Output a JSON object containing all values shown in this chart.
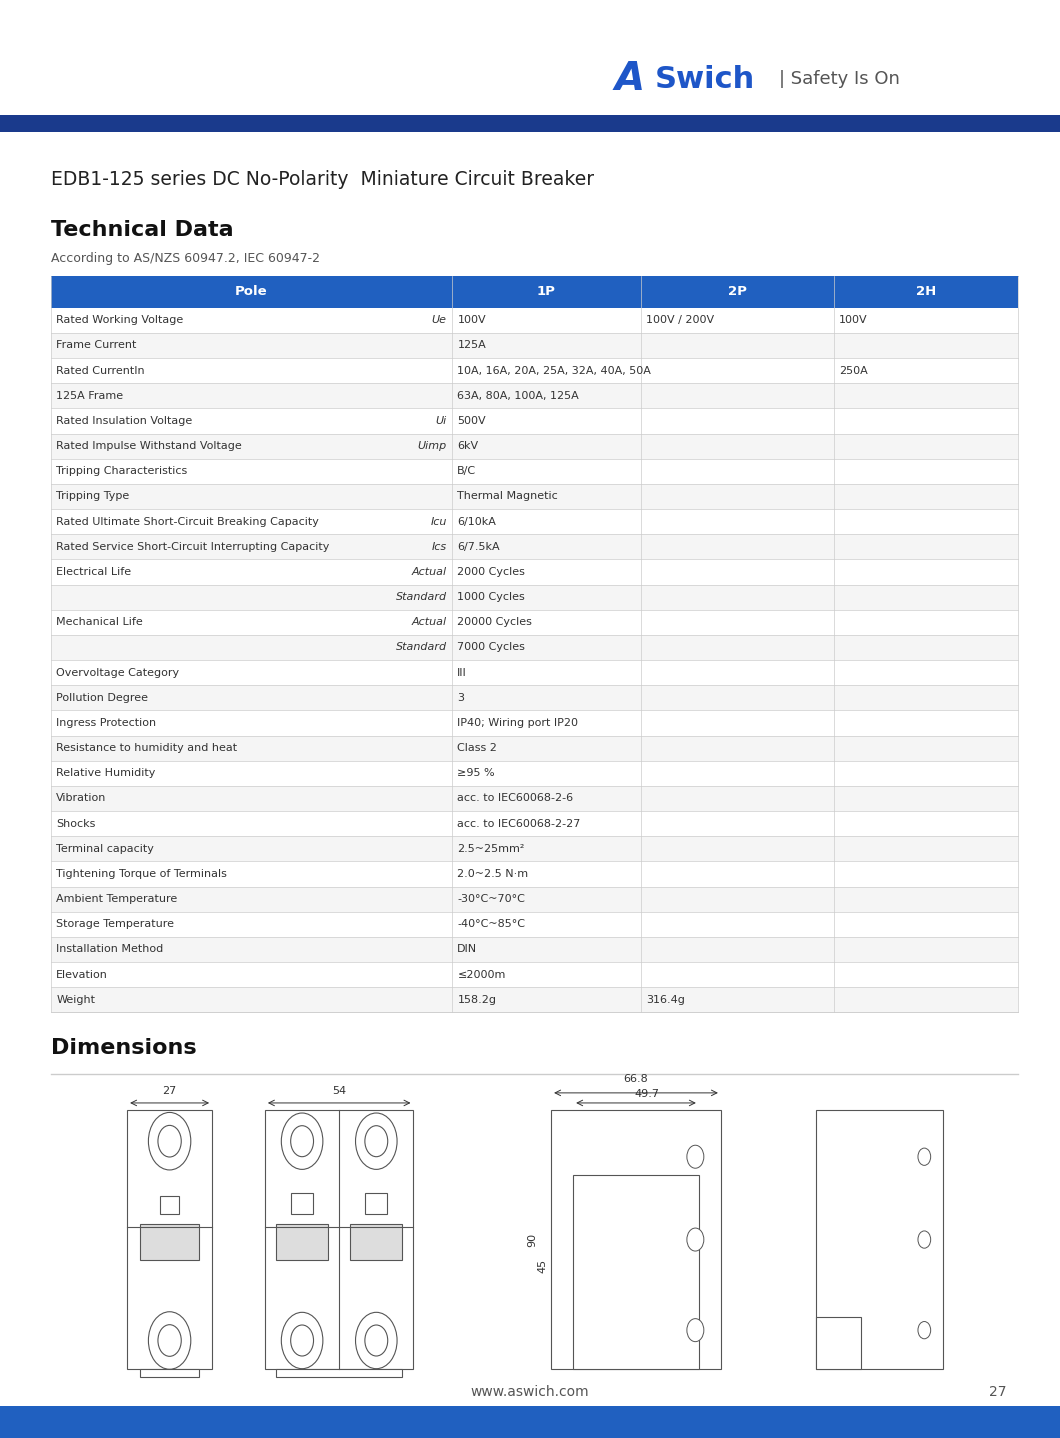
{
  "page_bg": "#ffffff",
  "header_bar_color": "#1a3a8c",
  "header_bar_height": 0.028,
  "logo_text_A": "A",
  "logo_text_Swich": "Swich",
  "logo_tagline": "| Safety Is On",
  "logo_A_color": "#1e56c8",
  "logo_Swich_color": "#1e56c8",
  "logo_tagline_color": "#555555",
  "product_title": "EDB1-125 series DC No-Polarity  Miniature Circuit Breaker",
  "section_title_technical": "Technical Data",
  "section_subtitle": "According to AS/NZS 60947.2, IEC 60947-2",
  "table_header_bg": "#2060c0",
  "table_header_text": "#ffffff",
  "table_row_bg_odd": "#ffffff",
  "table_row_bg_even": "#f5f5f5",
  "table_border_color": "#cccccc",
  "table_text_color": "#333333",
  "col_headers": [
    "Pole",
    "1P",
    "2P",
    "2H"
  ],
  "rows": [
    [
      "Rated Working Voltage",
      "Ue",
      "100V",
      "100V / 200V",
      "100V"
    ],
    [
      "Frame Current",
      "",
      "125A",
      "",
      ""
    ],
    [
      "Rated CurrentIn",
      "",
      "10A, 16A, 20A, 25A, 32A, 40A, 50A",
      "",
      "250A"
    ],
    [
      "125A Frame",
      "",
      "63A, 80A, 100A, 125A",
      "",
      ""
    ],
    [
      "Rated Insulation Voltage",
      "Ui",
      "500V",
      "",
      ""
    ],
    [
      "Rated Impulse Withstand Voltage",
      "Uimp",
      "6kV",
      "",
      ""
    ],
    [
      "Tripping Characteristics",
      "",
      "B/C",
      "",
      ""
    ],
    [
      "Tripping Type",
      "",
      "Thermal Magnetic",
      "",
      ""
    ],
    [
      "Rated Ultimate Short-Circuit Breaking Capacity",
      "Icu",
      "6/10kA",
      "",
      ""
    ],
    [
      "Rated Service Short-Circuit Interrupting Capacity",
      "Ics",
      "6/7.5kA",
      "",
      ""
    ],
    [
      "Electrical Life",
      "Actual",
      "2000 Cycles",
      "",
      ""
    ],
    [
      "",
      "Standard",
      "1000 Cycles",
      "",
      ""
    ],
    [
      "Mechanical Life",
      "Actual",
      "20000 Cycles",
      "",
      ""
    ],
    [
      "",
      "Standard",
      "7000 Cycles",
      "",
      ""
    ],
    [
      "Overvoltage Category",
      "",
      "III",
      "",
      ""
    ],
    [
      "Pollution Degree",
      "",
      "3",
      "",
      ""
    ],
    [
      "Ingress Protection",
      "",
      "IP40; Wiring port IP20",
      "",
      ""
    ],
    [
      "Resistance to humidity and heat",
      "",
      "Class 2",
      "",
      ""
    ],
    [
      "Relative Humidity",
      "",
      "≥95 %",
      "",
      ""
    ],
    [
      "Vibration",
      "",
      "acc. to IEC60068-2-6",
      "",
      ""
    ],
    [
      "Shocks",
      "",
      "acc. to IEC60068-2-27",
      "",
      ""
    ],
    [
      "Terminal capacity",
      "",
      "2.5~25mm²",
      "",
      ""
    ],
    [
      "Tightening Torque of Terminals",
      "",
      "2.0~2.5 N·m",
      "",
      ""
    ],
    [
      "Ambient Temperature",
      "",
      "-30°C~70°C",
      "",
      ""
    ],
    [
      "Storage Temperature",
      "",
      "-40°C~85°C",
      "",
      ""
    ],
    [
      "Installation Method",
      "",
      "DIN",
      "",
      ""
    ],
    [
      "Elevation",
      "",
      "≤2000m",
      "",
      ""
    ],
    [
      "Weight",
      "",
      "158.2g",
      "316.4g",
      ""
    ]
  ],
  "section_title_dimensions": "Dimensions",
  "dim_labels": [
    "27",
    "54",
    "66.8",
    "49.7",
    "90",
    "45"
  ],
  "footer_url": "www.aswich.com",
  "footer_page": "27",
  "footer_bar_color": "#2060c0"
}
